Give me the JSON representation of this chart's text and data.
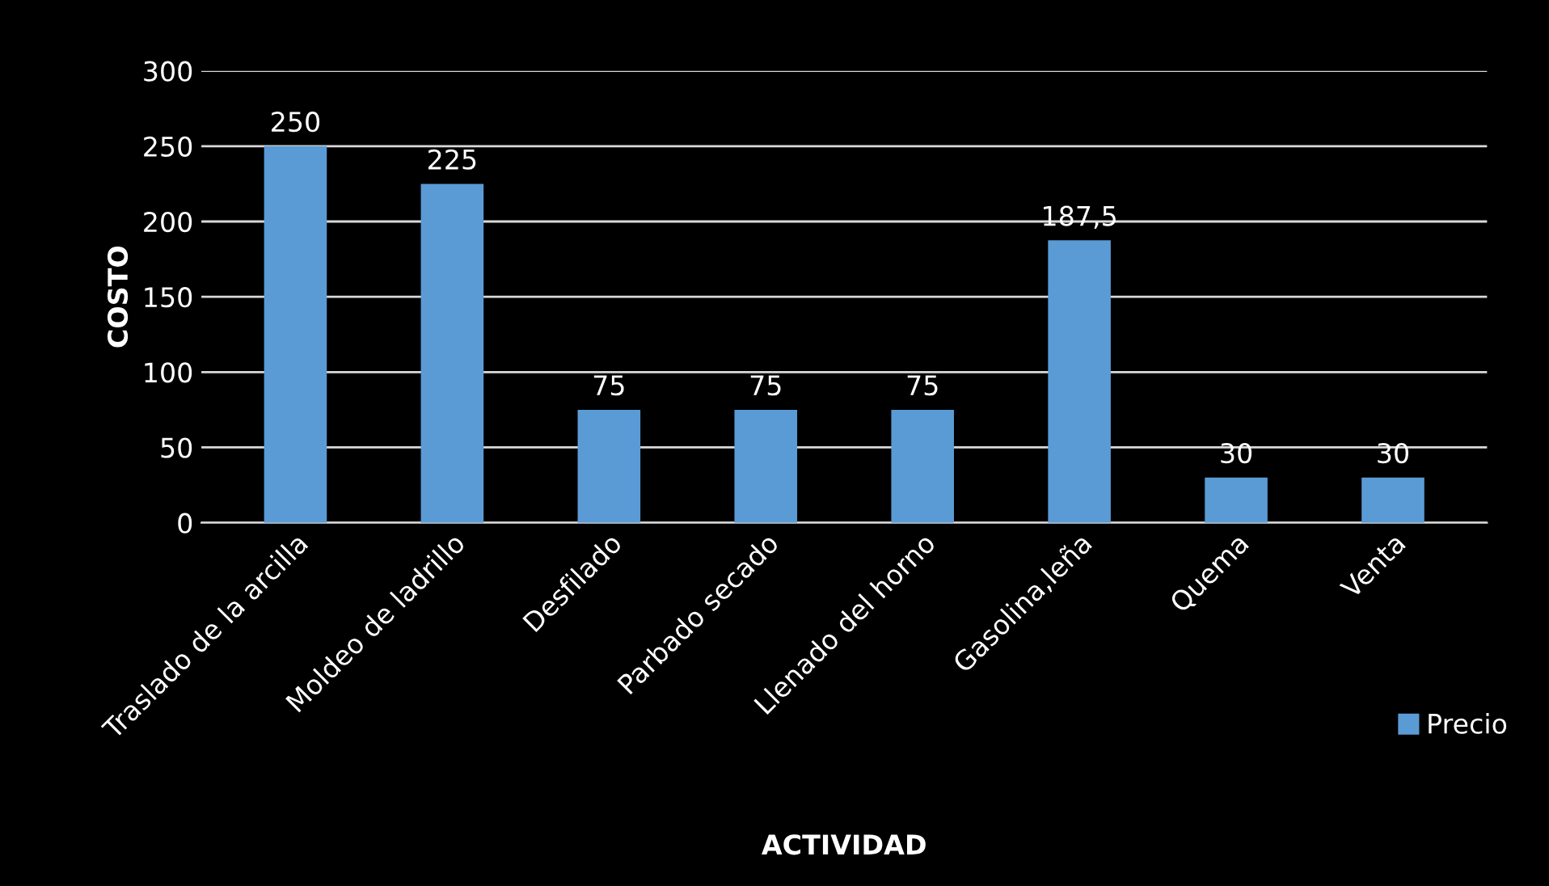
{
  "chart_data": {
    "type": "bar",
    "xlabel": "ACTIVIDAD",
    "ylabel": "COSTO",
    "categories": [
      "Traslado de la arcilla",
      "Moldeo de ladrillo",
      "Desfilado",
      "Parbado secado",
      "Llenado del horno",
      "Gasolina,leña",
      "Quema",
      "Venta"
    ],
    "series": [
      {
        "name": "Precio",
        "color": "#5b9bd5",
        "values": [
          250,
          225,
          75,
          75,
          75,
          187.5,
          30,
          30
        ],
        "value_labels": [
          "250",
          "225",
          "75",
          "75",
          "75",
          "187,5",
          "30",
          "30"
        ]
      }
    ],
    "ylim": [
      0,
      300
    ],
    "yticks": [
      0,
      50,
      100,
      150,
      200,
      250,
      300
    ],
    "grid": "y",
    "legend": "right"
  }
}
